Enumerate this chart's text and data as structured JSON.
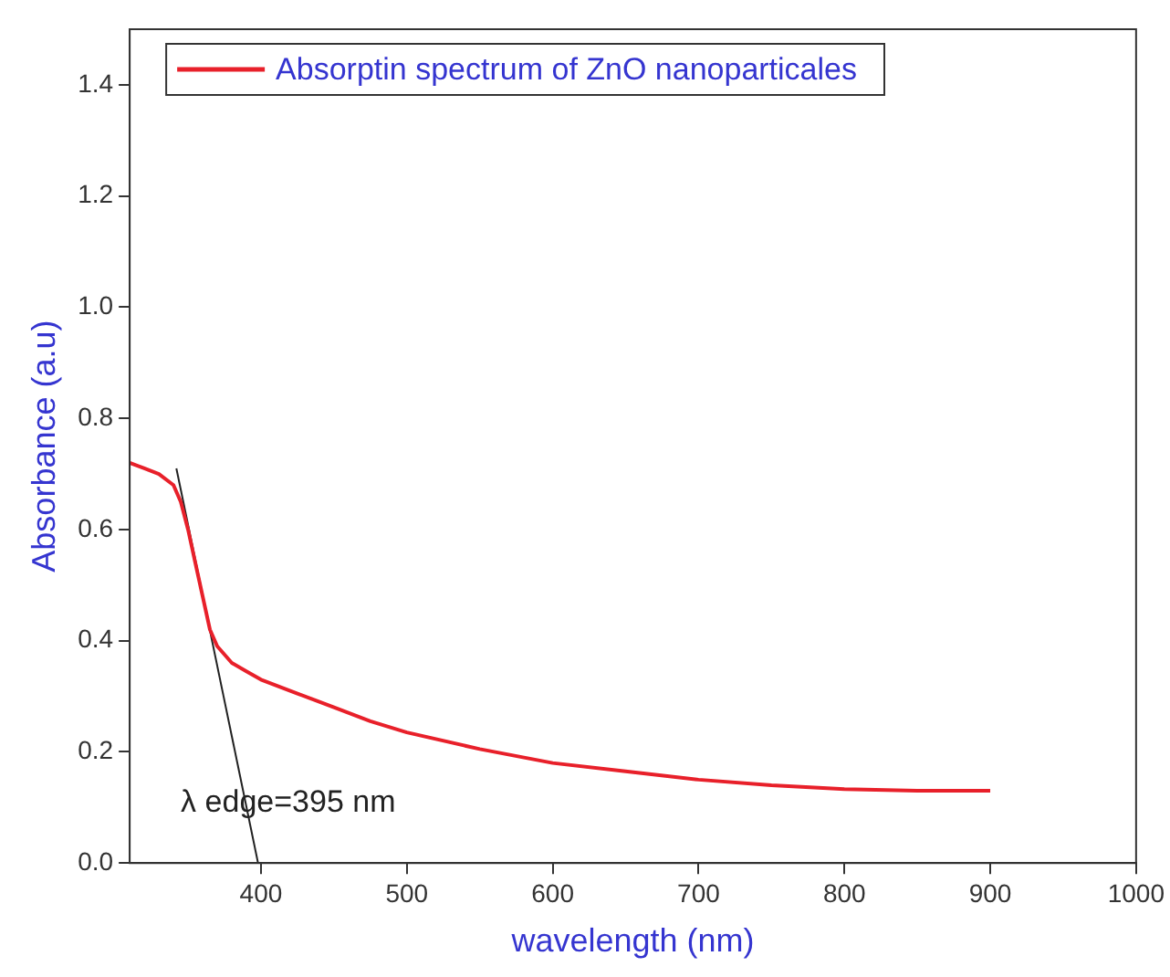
{
  "chart_data": {
    "type": "line",
    "xlabel": "wavelength (nm)",
    "ylabel": "Absorbance (a.u)",
    "xlim": [
      310,
      1000
    ],
    "xticks": [
      400,
      500,
      600,
      700,
      800,
      900,
      1000
    ],
    "ylim": [
      0,
      1.5
    ],
    "yticks": [
      {
        "value": 0,
        "label": "0.0"
      },
      {
        "value": 0.2,
        "label": "0.2"
      },
      {
        "value": 0.4,
        "label": "0.4"
      },
      {
        "value": 0.6,
        "label": "0.6"
      },
      {
        "value": 0.8,
        "label": "0.8"
      },
      {
        "value": 1,
        "label": "1.0"
      },
      {
        "value": 1.2,
        "label": "1.2"
      },
      {
        "value": 1.4,
        "label": "1.4"
      }
    ],
    "grid": false,
    "legend": "top left",
    "marker": "none",
    "line_style": "solid",
    "series": [
      {
        "name": "Absorptin spectrum of ZnO nanoparticales",
        "color": "#e8202a",
        "x": [
          310,
          320,
          330,
          340,
          345,
          350,
          355,
          360,
          365,
          370,
          380,
          390,
          400,
          425,
          450,
          475,
          500,
          550,
          600,
          650,
          700,
          750,
          800,
          850,
          900
        ],
        "values": [
          0.72,
          0.71,
          0.7,
          0.68,
          0.65,
          0.6,
          0.54,
          0.48,
          0.42,
          0.39,
          0.36,
          0.345,
          0.33,
          0.305,
          0.28,
          0.255,
          0.235,
          0.205,
          0.18,
          0.165,
          0.15,
          0.14,
          0.133,
          0.13,
          0.13
        ]
      },
      {
        "type": "line",
        "color": "#222222",
        "x": [
          342,
          398
        ],
        "values": [
          0.71,
          0
        ]
      }
    ],
    "annotations": [
      "λ edge=395 nm"
    ]
  }
}
